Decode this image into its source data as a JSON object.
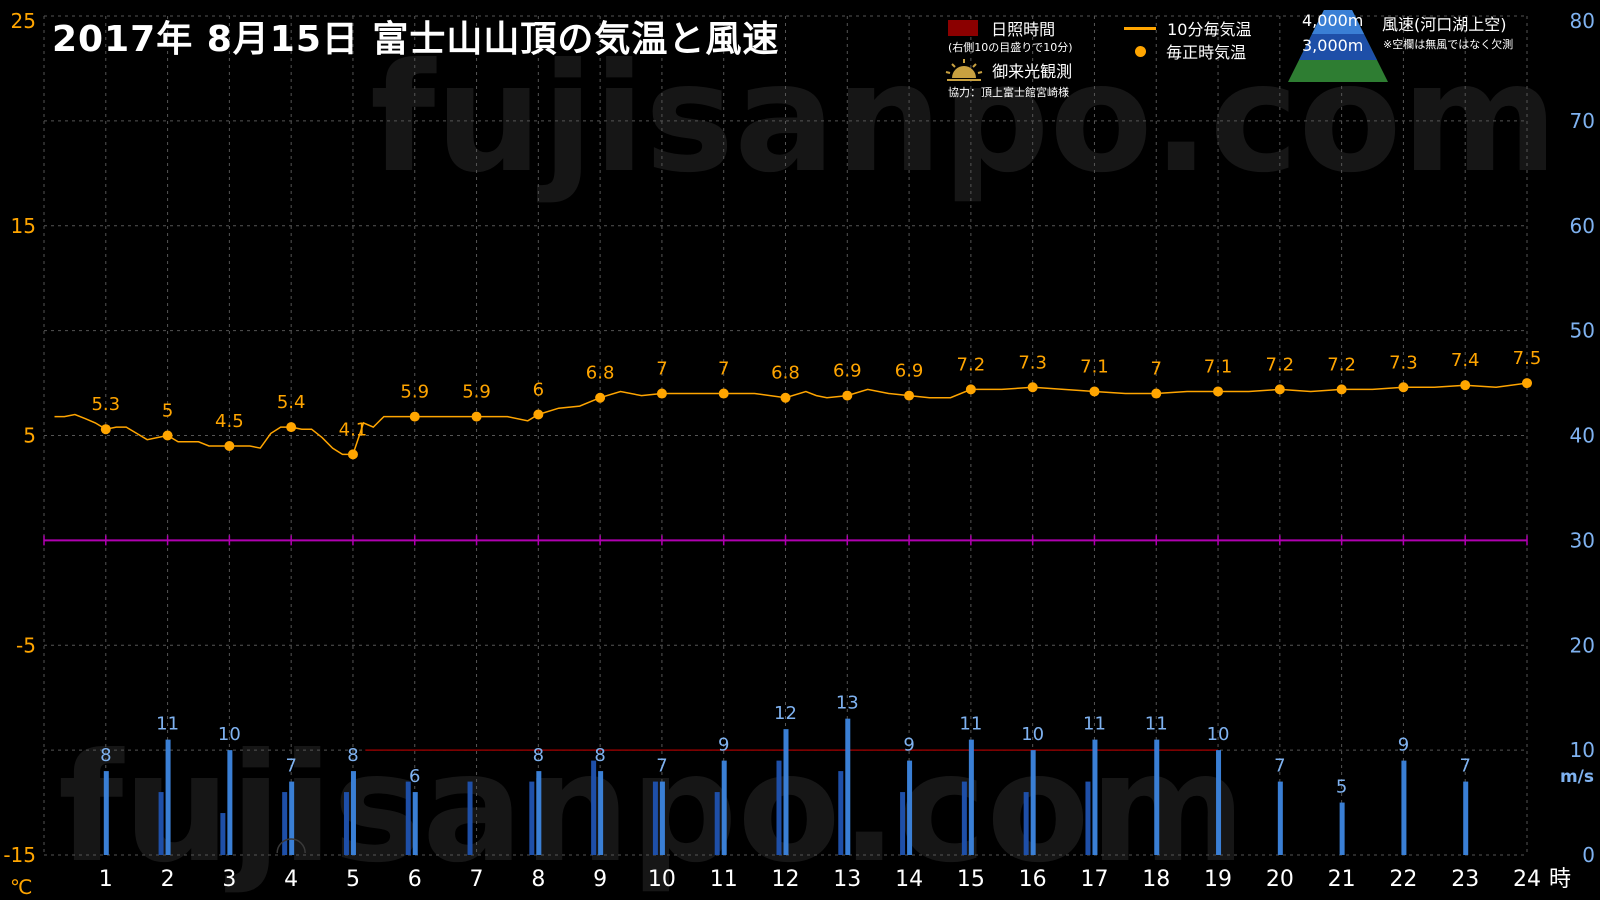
{
  "title": "2017年  8月15日   富士山山頂の気温と風速",
  "watermark": "fujisanpo.com",
  "legend": {
    "sunshine": "日照時間",
    "sunshine_note": "(右側10の目盛りで10分)",
    "goraiko": "御来光観測",
    "credit": "協力：頂上富士館宮崎様",
    "temp10": "10分毎気温",
    "temp_hourly": "毎正時気温",
    "alt_4000": "4,000m",
    "alt_3000": "3,000m",
    "wind_label": "風速(河口湖上空)",
    "wind_note": "※空欄は無風ではなく欠測"
  },
  "colors": {
    "temp": "#FFA500",
    "wind_4000": "#3A7FD5",
    "wind_3000": "#1E4FA8",
    "wind_label": "#7FB2F0",
    "sunshine": "#8B0000",
    "zero_line": "#B000B0",
    "grid": "#555555"
  },
  "chart_data": {
    "type": "line",
    "xlabel": "時",
    "x_ticks": [
      "1",
      "2",
      "3",
      "4",
      "5",
      "6",
      "7",
      "8",
      "9",
      "10",
      "11",
      "12",
      "13",
      "14",
      "15",
      "16",
      "17",
      "18",
      "19",
      "20",
      "21",
      "22",
      "23",
      "24"
    ],
    "xlim": [
      0,
      24
    ],
    "y_left": {
      "unit": "℃",
      "ylim": [
        -15,
        25
      ],
      "ticks": [
        "-15",
        "-5",
        "5",
        "15",
        "25"
      ]
    },
    "y_right": {
      "unit": "m/s",
      "ylim": [
        0,
        80
      ],
      "ticks": [
        "0",
        "10",
        "20",
        "30",
        "40",
        "50",
        "60",
        "70",
        "80"
      ]
    },
    "grid": true,
    "temp_hourly": {
      "hours": [
        1,
        2,
        3,
        4,
        5,
        6,
        7,
        8,
        9,
        10,
        11,
        12,
        13,
        14,
        15,
        16,
        17,
        18,
        19,
        20,
        21,
        22,
        23,
        24
      ],
      "values": [
        5.3,
        5.0,
        4.5,
        5.4,
        4.1,
        5.9,
        5.9,
        6.0,
        6.8,
        7.0,
        7.0,
        6.8,
        6.9,
        6.9,
        7.2,
        7.3,
        7.1,
        7.0,
        7.1,
        7.2,
        7.2,
        7.3,
        7.4,
        7.5
      ],
      "labels": [
        "5.3",
        "5",
        "4.5",
        "5.4",
        "4.1",
        "5.9",
        "5.9",
        "6",
        "6.8",
        "7",
        "7",
        "6.8",
        "6.9",
        "6.9",
        "7.2",
        "7.3",
        "7.1",
        "7",
        "7.1",
        "7.2",
        "7.2",
        "7.3",
        "7.4",
        "7.5"
      ]
    },
    "temp_10min": {
      "x": [
        0.17,
        0.33,
        0.5,
        0.67,
        0.83,
        1.0,
        1.17,
        1.33,
        1.5,
        1.67,
        1.83,
        2.0,
        2.17,
        2.33,
        2.5,
        2.67,
        2.83,
        3.0,
        3.17,
        3.33,
        3.5,
        3.67,
        3.83,
        4.0,
        4.17,
        4.33,
        4.5,
        4.67,
        4.83,
        5.0,
        5.17,
        5.33,
        5.5,
        5.67,
        5.83,
        6.0,
        6.5,
        7.0,
        7.5,
        7.83,
        8.0,
        8.33,
        8.67,
        9.0,
        9.33,
        9.67,
        10.0,
        10.5,
        11.0,
        11.5,
        12.0,
        12.33,
        12.5,
        12.67,
        13.0,
        13.33,
        13.67,
        14.0,
        14.33,
        14.67,
        15.0,
        15.5,
        16.0,
        16.5,
        17.0,
        17.5,
        18.0,
        18.5,
        19.0,
        19.5,
        20.0,
        20.5,
        21.0,
        21.5,
        22.0,
        22.5,
        23.0,
        23.5,
        24.0
      ],
      "y": [
        5.9,
        5.9,
        6.0,
        5.8,
        5.6,
        5.3,
        5.4,
        5.4,
        5.1,
        4.8,
        4.9,
        5.0,
        4.7,
        4.7,
        4.7,
        4.5,
        4.5,
        4.5,
        4.5,
        4.5,
        4.4,
        5.1,
        5.4,
        5.4,
        5.3,
        5.3,
        4.9,
        4.4,
        4.1,
        4.1,
        5.6,
        5.4,
        5.9,
        5.9,
        5.9,
        5.9,
        5.9,
        5.9,
        5.9,
        5.7,
        6.0,
        6.3,
        6.4,
        6.8,
        7.1,
        6.9,
        7.0,
        7.0,
        7.0,
        7.0,
        6.8,
        7.1,
        6.9,
        6.8,
        6.9,
        7.2,
        7.0,
        6.9,
        6.8,
        6.8,
        7.2,
        7.2,
        7.3,
        7.2,
        7.1,
        7.0,
        7.0,
        7.1,
        7.1,
        7.1,
        7.2,
        7.1,
        7.2,
        7.2,
        7.3,
        7.3,
        7.4,
        7.3,
        7.5
      ]
    },
    "wind_4000": {
      "hours": [
        1,
        2,
        3,
        4,
        5,
        6,
        8,
        9,
        10,
        11,
        12,
        13,
        14,
        15,
        16,
        17,
        18,
        19,
        20,
        21,
        22,
        23
      ],
      "values": [
        8,
        11,
        10,
        7,
        8,
        6,
        8,
        8,
        7,
        9,
        12,
        13,
        9,
        11,
        10,
        11,
        11,
        10,
        7,
        5,
        9,
        7
      ],
      "labels": [
        "8",
        "11",
        "10",
        "7",
        "8",
        "6",
        "8",
        "8",
        "7",
        "9",
        "12",
        "13",
        "9",
        "11",
        "10",
        "11",
        "11",
        "10",
        "7",
        "5",
        "9",
        "7"
      ]
    },
    "wind_3000": {
      "hours": [
        1,
        2,
        3,
        4,
        5,
        6,
        7,
        8,
        9,
        10,
        11,
        12,
        13,
        14,
        15,
        16,
        17
      ],
      "values": [
        0,
        6,
        4,
        6,
        6,
        7,
        7,
        7,
        9,
        7,
        6,
        9,
        8,
        6,
        7,
        6,
        7
      ]
    }
  }
}
